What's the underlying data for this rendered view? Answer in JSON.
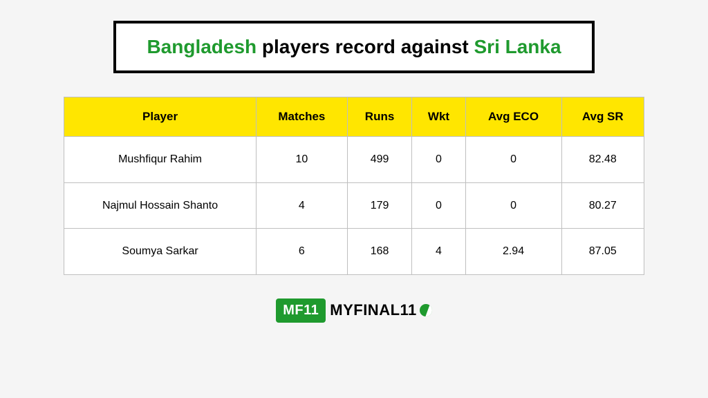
{
  "title": {
    "part1": "Bangladesh",
    "part2": " players record against ",
    "part3": "Sri Lanka",
    "accent_color": "#1f9a2e",
    "border_color": "#000000",
    "font_size": 28
  },
  "table": {
    "header_bg": "#ffe600",
    "border_color": "#bfbfbf",
    "cell_bg": "#ffffff",
    "header_font_size": 17,
    "cell_font_size": 16,
    "columns": [
      "Player",
      "Matches",
      "Runs",
      "Wkt",
      "Avg ECO",
      "Avg SR"
    ],
    "rows": [
      [
        "Mushfiqur Rahim",
        "10",
        "499",
        "0",
        "0",
        "82.48"
      ],
      [
        "Najmul Hossain Shanto",
        "4",
        "179",
        "0",
        "0",
        "80.27"
      ],
      [
        "Soumya Sarkar",
        "6",
        "168",
        "4",
        "2.94",
        "87.05"
      ]
    ]
  },
  "logo": {
    "badge": "MF11",
    "text": "MYFINAL11",
    "badge_bg": "#1f9a2e"
  },
  "page_bg": "#f5f5f5"
}
